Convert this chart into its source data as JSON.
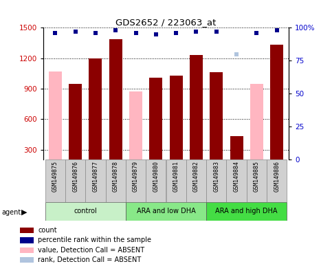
{
  "title": "GDS2652 / 223063_at",
  "samples": [
    "GSM149875",
    "GSM149876",
    "GSM149877",
    "GSM149878",
    "GSM149879",
    "GSM149880",
    "GSM149881",
    "GSM149882",
    "GSM149883",
    "GSM149884",
    "GSM149885",
    "GSM149886"
  ],
  "count_values": [
    null,
    950,
    1200,
    1390,
    null,
    1010,
    1030,
    1230,
    1060,
    430,
    null,
    1330
  ],
  "value_absent": [
    1070,
    null,
    null,
    null,
    870,
    null,
    null,
    null,
    null,
    null,
    950,
    null
  ],
  "percentile_rank": [
    96,
    97,
    96,
    98,
    96,
    95,
    96,
    97,
    97,
    null,
    96,
    98
  ],
  "rank_absent": [
    96,
    null,
    null,
    null,
    96,
    null,
    null,
    null,
    null,
    80,
    96,
    null
  ],
  "absent_detection": [
    true,
    false,
    false,
    false,
    true,
    false,
    false,
    false,
    false,
    false,
    true,
    false
  ],
  "rank_absent_detection": [
    false,
    false,
    false,
    false,
    false,
    false,
    false,
    false,
    false,
    true,
    false,
    false
  ],
  "groups": [
    {
      "label": "control",
      "start": 0,
      "end": 4,
      "color": "#c8f0c8"
    },
    {
      "label": "ARA and low DHA",
      "start": 4,
      "end": 8,
      "color": "#88e888"
    },
    {
      "label": "ARA and high DHA",
      "start": 8,
      "end": 12,
      "color": "#44dd44"
    }
  ],
  "ylim_left": [
    200,
    1500
  ],
  "ylim_right": [
    0,
    100
  ],
  "yticks_left": [
    300,
    600,
    900,
    1200,
    1500
  ],
  "yticks_right": [
    0,
    25,
    50,
    75,
    100
  ],
  "bar_color_present": "#8B0000",
  "bar_color_absent": "#FFB6C1",
  "dot_color_present": "#00008B",
  "dot_color_absent": "#B0C4DE",
  "legend_items": [
    {
      "color": "#8B0000",
      "label": "count"
    },
    {
      "color": "#00008B",
      "label": "percentile rank within the sample"
    },
    {
      "color": "#FFB6C1",
      "label": "value, Detection Call = ABSENT"
    },
    {
      "color": "#B0C4DE",
      "label": "rank, Detection Call = ABSENT"
    }
  ],
  "ylabel_left_color": "#cc0000",
  "ylabel_right_color": "#0000cc",
  "xtick_bg_color": "#d0d0d0",
  "plot_bg_color": "#ffffff",
  "fig_bg_color": "#ffffff"
}
